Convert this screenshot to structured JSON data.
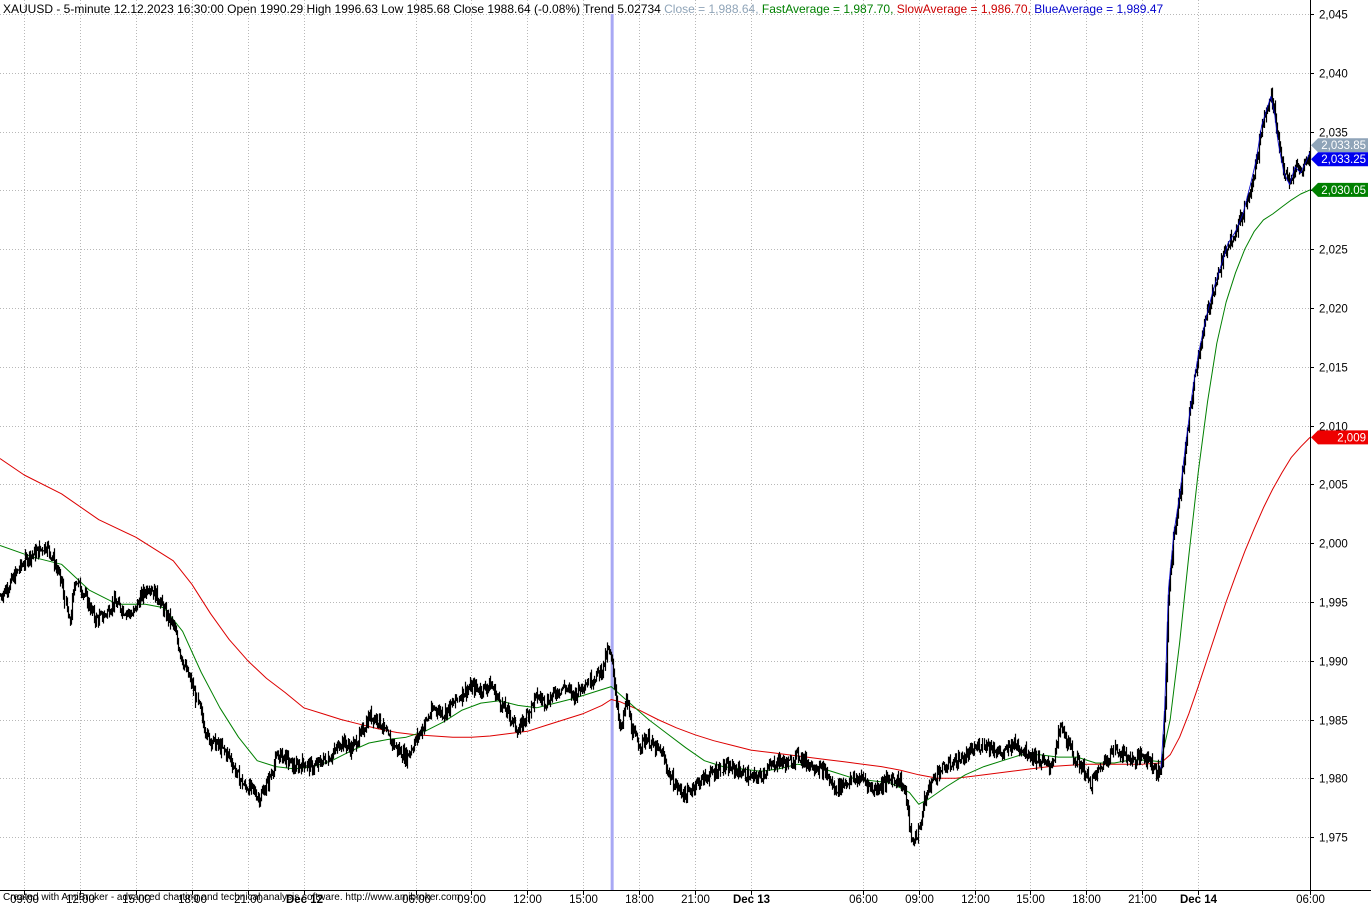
{
  "header": {
    "symbol_info": "XAUUSD - 5-minute 12.12.2023 16:30:00 Open 1990.29 High 1996.63 Low 1985.68 Close 1988.64 (-0.08%) Trend 5.02734 ",
    "close_label": "Close = 1,988.64, ",
    "fast_label": "FastAverage = 1,987.70, ",
    "slow_label": "SlowAverage = 1,986.70, ",
    "blue_label": "BlueAverage = 1,989.47",
    "colors": {
      "main": "#000000",
      "close": "#8fa4b8",
      "fast": "#008000",
      "slow": "#cc0000",
      "blue": "#0000cc"
    }
  },
  "footer_text": "Created with AmiBroker - advanced charting and technical analysis software. http://www.amibroker.com",
  "price_tags": [
    {
      "label": "2,033.85",
      "value": 2033.85,
      "color": "#8fa4b8"
    },
    {
      "label": "2,033.25",
      "value": 2033.25,
      "color": "#0000ee"
    },
    {
      "label": "2,030.05",
      "value": 2030.05,
      "color": "#008000"
    },
    {
      "label": "2,009",
      "value": 2009.0,
      "color": "#ee0000"
    }
  ],
  "chart_data": {
    "type": "candlestick",
    "ylim": [
      1970.5,
      2046.2
    ],
    "y_ticks": [
      1975,
      1980,
      1985,
      1990,
      1995,
      2000,
      2005,
      2010,
      2015,
      2020,
      2025,
      2030,
      2035,
      2040,
      2045
    ],
    "y_tick_labels": [
      "1,975",
      "1,980",
      "1,985",
      "1,990",
      "1,995",
      "2,000",
      "2,005",
      "2,010",
      "2,015",
      "2,020",
      "2,025",
      "2,030",
      "2,035",
      "2,040",
      "2,045"
    ],
    "x_ticks": [
      {
        "x": 1.0,
        "label": "09:00",
        "bold": false
      },
      {
        "x": 4.0,
        "label": "12:00",
        "bold": false
      },
      {
        "x": 7.0,
        "label": "15:00",
        "bold": false
      },
      {
        "x": 10.0,
        "label": "18:00",
        "bold": false
      },
      {
        "x": 13.0,
        "label": "21:00",
        "bold": false
      },
      {
        "x": 16.0,
        "label": "Dec 12",
        "bold": true
      },
      {
        "x": 22.0,
        "label": "06:00",
        "bold": false
      },
      {
        "x": 25.0,
        "label": "09:00",
        "bold": false
      },
      {
        "x": 28.0,
        "label": "12:00",
        "bold": false
      },
      {
        "x": 31.0,
        "label": "15:00",
        "bold": false
      },
      {
        "x": 34.0,
        "label": "18:00",
        "bold": false
      },
      {
        "x": 37.0,
        "label": "21:00",
        "bold": false
      },
      {
        "x": 40.0,
        "label": "Dec 13",
        "bold": true
      },
      {
        "x": 46.0,
        "label": "06:00",
        "bold": false
      },
      {
        "x": 49.0,
        "label": "09:00",
        "bold": false
      },
      {
        "x": 52.0,
        "label": "12:00",
        "bold": false
      },
      {
        "x": 55.0,
        "label": "15:00",
        "bold": false
      },
      {
        "x": 58.0,
        "label": "18:00",
        "bold": false
      },
      {
        "x": 61.0,
        "label": "21:00",
        "bold": false
      },
      {
        "x": 64.0,
        "label": "Dec 14",
        "bold": true
      },
      {
        "x": 70.0,
        "label": "06:00",
        "bold": false
      }
    ],
    "x_domain": [
      -0.3,
      70.0
    ],
    "selected_x": 32.55,
    "price_path": [
      [
        -0.3,
        1995.5
      ],
      [
        0.2,
        1996.5
      ],
      [
        0.7,
        1997.8
      ],
      [
        1.2,
        1998.8
      ],
      [
        1.7,
        1999.3
      ],
      [
        2.2,
        1999.8
      ],
      [
        2.6,
        1998.5
      ],
      [
        3.0,
        1996.7
      ],
      [
        3.4,
        1993.0
      ],
      [
        3.7,
        1997.0
      ],
      [
        4.2,
        1995.6
      ],
      [
        4.8,
        1993.5
      ],
      [
        5.3,
        1993.9
      ],
      [
        5.8,
        1995.0
      ],
      [
        6.3,
        1994.3
      ],
      [
        6.8,
        1993.9
      ],
      [
        7.2,
        1995.3
      ],
      [
        7.7,
        1996.4
      ],
      [
        8.2,
        1995.3
      ],
      [
        8.6,
        1994.0
      ],
      [
        9.0,
        1993.0
      ],
      [
        9.5,
        1990.0
      ],
      [
        10.0,
        1988.0
      ],
      [
        10.4,
        1985.8
      ],
      [
        10.8,
        1983.5
      ],
      [
        11.2,
        1983.0
      ],
      [
        11.6,
        1982.5
      ],
      [
        12.0,
        1981.8
      ],
      [
        12.4,
        1980.3
      ],
      [
        12.8,
        1979.3
      ],
      [
        13.2,
        1979.1
      ],
      [
        13.6,
        1978.3
      ],
      [
        14.1,
        1979.8
      ],
      [
        14.6,
        1982.0
      ],
      [
        15.0,
        1981.8
      ],
      [
        15.5,
        1980.9
      ],
      [
        16.0,
        1981.3
      ],
      [
        16.5,
        1980.9
      ],
      [
        17.0,
        1981.5
      ],
      [
        17.5,
        1982.0
      ],
      [
        18.0,
        1983.2
      ],
      [
        18.5,
        1982.5
      ],
      [
        19.0,
        1983.6
      ],
      [
        19.5,
        1985.3
      ],
      [
        20.0,
        1985.0
      ],
      [
        20.5,
        1983.5
      ],
      [
        21.0,
        1982.5
      ],
      [
        21.5,
        1981.8
      ],
      [
        22.0,
        1983.2
      ],
      [
        22.5,
        1984.7
      ],
      [
        23.0,
        1986.0
      ],
      [
        23.5,
        1985.5
      ],
      [
        24.0,
        1986.3
      ],
      [
        24.5,
        1987.3
      ],
      [
        25.0,
        1987.8
      ],
      [
        25.5,
        1987.5
      ],
      [
        26.0,
        1988.0
      ],
      [
        26.5,
        1986.5
      ],
      [
        27.0,
        1985.4
      ],
      [
        27.5,
        1984.0
      ],
      [
        28.0,
        1985.5
      ],
      [
        28.5,
        1987.0
      ],
      [
        29.0,
        1986.5
      ],
      [
        29.5,
        1987.3
      ],
      [
        30.0,
        1987.8
      ],
      [
        30.5,
        1987.0
      ],
      [
        31.0,
        1988.0
      ],
      [
        31.5,
        1988.5
      ],
      [
        32.0,
        1989.3
      ],
      [
        32.3,
        1991.0
      ],
      [
        32.55,
        1989.5
      ],
      [
        32.8,
        1986.0
      ],
      [
        33.0,
        1984.0
      ],
      [
        33.3,
        1986.8
      ],
      [
        33.6,
        1984.0
      ],
      [
        34.0,
        1982.8
      ],
      [
        34.4,
        1983.5
      ],
      [
        34.8,
        1982.6
      ],
      [
        35.2,
        1982.2
      ],
      [
        35.6,
        1980.3
      ],
      [
        36.0,
        1979.3
      ],
      [
        36.5,
        1978.5
      ],
      [
        37.0,
        1979.5
      ],
      [
        37.5,
        1980.0
      ],
      [
        38.0,
        1980.5
      ],
      [
        38.5,
        1981.0
      ],
      [
        39.0,
        1980.8
      ],
      [
        39.5,
        1980.5
      ],
      [
        40.0,
        1980.0
      ],
      [
        40.5,
        1980.2
      ],
      [
        41.0,
        1981.0
      ],
      [
        41.5,
        1981.5
      ],
      [
        42.0,
        1981.2
      ],
      [
        42.5,
        1982.0
      ],
      [
        43.0,
        1981.3
      ],
      [
        43.5,
        1981.0
      ],
      [
        44.0,
        1980.5
      ],
      [
        44.5,
        1979.0
      ],
      [
        45.0,
        1979.6
      ],
      [
        45.5,
        1979.9
      ],
      [
        46.0,
        1980.0
      ],
      [
        46.5,
        1979.0
      ],
      [
        47.0,
        1979.5
      ],
      [
        47.5,
        1980.0
      ],
      [
        48.0,
        1979.8
      ],
      [
        48.3,
        1978.5
      ],
      [
        48.6,
        1974.5
      ],
      [
        49.0,
        1975.5
      ],
      [
        49.3,
        1978.0
      ],
      [
        49.6,
        1979.5
      ],
      [
        50.0,
        1980.5
      ],
      [
        50.5,
        1981.0
      ],
      [
        51.0,
        1981.5
      ],
      [
        51.5,
        1981.8
      ],
      [
        52.0,
        1982.5
      ],
      [
        52.5,
        1983.0
      ],
      [
        53.0,
        1982.5
      ],
      [
        53.5,
        1982.0
      ],
      [
        54.0,
        1983.0
      ],
      [
        54.5,
        1982.5
      ],
      [
        55.0,
        1982.0
      ],
      [
        55.5,
        1981.5
      ],
      [
        56.0,
        1981.0
      ],
      [
        56.3,
        1982.0
      ],
      [
        56.6,
        1984.5
      ],
      [
        57.0,
        1983.0
      ],
      [
        57.4,
        1981.5
      ],
      [
        57.8,
        1981.0
      ],
      [
        58.2,
        1979.5
      ],
      [
        58.6,
        1980.5
      ],
      [
        59.0,
        1981.5
      ],
      [
        59.5,
        1982.5
      ],
      [
        60.0,
        1982.0
      ],
      [
        60.5,
        1981.5
      ],
      [
        61.0,
        1982.0
      ],
      [
        61.4,
        1981.5
      ],
      [
        61.8,
        1980.5
      ],
      [
        62.0,
        1980.8
      ],
      [
        62.2,
        1986.0
      ],
      [
        62.4,
        1996.0
      ],
      [
        62.7,
        2001.0
      ],
      [
        63.0,
        2004.0
      ],
      [
        63.3,
        2008.0
      ],
      [
        63.7,
        2013.0
      ],
      [
        64.0,
        2016.0
      ],
      [
        64.4,
        2019.0
      ],
      [
        64.8,
        2021.5
      ],
      [
        65.2,
        2023.5
      ],
      [
        65.6,
        2025.5
      ],
      [
        66.0,
        2026.5
      ],
      [
        66.4,
        2028.0
      ],
      [
        66.8,
        2030.5
      ],
      [
        67.1,
        2032.5
      ],
      [
        67.4,
        2035.5
      ],
      [
        67.7,
        2037.0
      ],
      [
        67.9,
        2038.0
      ],
      [
        68.1,
        2036.5
      ],
      [
        68.3,
        2034.0
      ],
      [
        68.6,
        2031.5
      ],
      [
        68.9,
        2030.5
      ],
      [
        69.2,
        2032.0
      ],
      [
        69.5,
        2031.5
      ],
      [
        69.8,
        2032.5
      ],
      [
        70.0,
        2033.25
      ]
    ],
    "fast_average": [
      [
        -0.3,
        1999.8
      ],
      [
        1.5,
        1998.8
      ],
      [
        3.0,
        1998.2
      ],
      [
        4.5,
        1996.0
      ],
      [
        6.0,
        1994.8
      ],
      [
        7.5,
        1994.8
      ],
      [
        8.5,
        1994.5
      ],
      [
        9.5,
        1992.5
      ],
      [
        10.5,
        1989.0
      ],
      [
        11.5,
        1986.0
      ],
      [
        12.5,
        1983.5
      ],
      [
        13.5,
        1981.5
      ],
      [
        14.5,
        1981.0
      ],
      [
        15.5,
        1980.8
      ],
      [
        16.5,
        1981.0
      ],
      [
        17.5,
        1981.5
      ],
      [
        18.5,
        1982.3
      ],
      [
        19.5,
        1983.0
      ],
      [
        20.5,
        1983.3
      ],
      [
        21.5,
        1983.5
      ],
      [
        22.5,
        1984.0
      ],
      [
        23.5,
        1984.8
      ],
      [
        24.5,
        1985.8
      ],
      [
        25.5,
        1986.4
      ],
      [
        26.5,
        1986.6
      ],
      [
        27.5,
        1986.2
      ],
      [
        28.5,
        1986.0
      ],
      [
        29.5,
        1986.4
      ],
      [
        30.5,
        1986.8
      ],
      [
        31.5,
        1987.3
      ],
      [
        32.5,
        1987.8
      ],
      [
        33.5,
        1986.4
      ],
      [
        34.5,
        1985.0
      ],
      [
        35.5,
        1983.8
      ],
      [
        36.5,
        1982.6
      ],
      [
        37.5,
        1981.5
      ],
      [
        38.5,
        1981.0
      ],
      [
        39.5,
        1980.8
      ],
      [
        40.5,
        1980.6
      ],
      [
        41.5,
        1980.8
      ],
      [
        42.5,
        1981.2
      ],
      [
        43.5,
        1981.0
      ],
      [
        44.5,
        1980.5
      ],
      [
        45.5,
        1980.0
      ],
      [
        46.5,
        1979.8
      ],
      [
        47.5,
        1979.6
      ],
      [
        48.5,
        1978.8
      ],
      [
        49.0,
        1977.8
      ],
      [
        49.5,
        1978.2
      ],
      [
        50.5,
        1979.3
      ],
      [
        51.5,
        1980.3
      ],
      [
        52.5,
        1981.0
      ],
      [
        53.5,
        1981.5
      ],
      [
        54.5,
        1982.0
      ],
      [
        55.5,
        1982.0
      ],
      [
        56.5,
        1981.8
      ],
      [
        57.5,
        1981.8
      ],
      [
        58.5,
        1981.3
      ],
      [
        59.5,
        1981.3
      ],
      [
        60.5,
        1981.6
      ],
      [
        61.5,
        1981.5
      ],
      [
        62.0,
        1981.4
      ],
      [
        62.5,
        1985.0
      ],
      [
        63.0,
        1991.5
      ],
      [
        63.5,
        1999.0
      ],
      [
        64.0,
        2006.0
      ],
      [
        64.5,
        2012.0
      ],
      [
        65.0,
        2017.0
      ],
      [
        65.5,
        2020.5
      ],
      [
        66.0,
        2023.0
      ],
      [
        66.5,
        2025.0
      ],
      [
        67.0,
        2026.5
      ],
      [
        67.5,
        2027.5
      ],
      [
        68.0,
        2028.0
      ],
      [
        68.5,
        2028.6
      ],
      [
        69.0,
        2029.2
      ],
      [
        69.5,
        2029.7
      ],
      [
        70.0,
        2030.05
      ]
    ],
    "slow_average": [
      [
        -0.3,
        2007.2
      ],
      [
        1.0,
        2005.8
      ],
      [
        3.0,
        2004.2
      ],
      [
        5.0,
        2002.0
      ],
      [
        7.0,
        2000.5
      ],
      [
        9.0,
        1998.5
      ],
      [
        10.0,
        1996.5
      ],
      [
        11.0,
        1994.0
      ],
      [
        12.0,
        1991.8
      ],
      [
        13.0,
        1990.0
      ],
      [
        14.0,
        1988.5
      ],
      [
        15.0,
        1987.3
      ],
      [
        16.0,
        1986.0
      ],
      [
        17.0,
        1985.5
      ],
      [
        18.0,
        1985.0
      ],
      [
        19.0,
        1984.6
      ],
      [
        20.0,
        1984.2
      ],
      [
        21.0,
        1983.9
      ],
      [
        22.0,
        1983.7
      ],
      [
        23.0,
        1983.6
      ],
      [
        24.0,
        1983.5
      ],
      [
        25.0,
        1983.5
      ],
      [
        26.0,
        1983.6
      ],
      [
        27.0,
        1983.8
      ],
      [
        28.0,
        1984.0
      ],
      [
        29.0,
        1984.5
      ],
      [
        30.0,
        1985.0
      ],
      [
        31.0,
        1985.5
      ],
      [
        32.0,
        1986.2
      ],
      [
        32.5,
        1986.7
      ],
      [
        33.0,
        1986.5
      ],
      [
        34.0,
        1985.8
      ],
      [
        35.0,
        1985.0
      ],
      [
        36.0,
        1984.3
      ],
      [
        37.0,
        1983.7
      ],
      [
        38.0,
        1983.2
      ],
      [
        39.0,
        1982.8
      ],
      [
        40.0,
        1982.4
      ],
      [
        41.0,
        1982.2
      ],
      [
        42.0,
        1982.0
      ],
      [
        43.0,
        1981.8
      ],
      [
        44.0,
        1981.6
      ],
      [
        45.0,
        1981.4
      ],
      [
        46.0,
        1981.2
      ],
      [
        47.0,
        1981.0
      ],
      [
        48.0,
        1980.7
      ],
      [
        49.0,
        1980.3
      ],
      [
        50.0,
        1980.0
      ],
      [
        51.0,
        1980.0
      ],
      [
        52.0,
        1980.2
      ],
      [
        53.0,
        1980.4
      ],
      [
        54.0,
        1980.6
      ],
      [
        55.0,
        1980.8
      ],
      [
        56.0,
        1981.0
      ],
      [
        57.0,
        1981.1
      ],
      [
        58.0,
        1981.2
      ],
      [
        59.0,
        1981.2
      ],
      [
        60.0,
        1981.2
      ],
      [
        61.0,
        1981.2
      ],
      [
        62.0,
        1981.3
      ],
      [
        62.5,
        1982.0
      ],
      [
        63.0,
        1983.5
      ],
      [
        63.5,
        1985.5
      ],
      [
        64.0,
        1987.8
      ],
      [
        64.5,
        1990.2
      ],
      [
        65.0,
        1992.6
      ],
      [
        65.5,
        1995.0
      ],
      [
        66.0,
        1997.2
      ],
      [
        66.5,
        1999.3
      ],
      [
        67.0,
        2001.2
      ],
      [
        67.5,
        2003.0
      ],
      [
        68.0,
        2004.6
      ],
      [
        68.5,
        2006.0
      ],
      [
        69.0,
        2007.3
      ],
      [
        69.5,
        2008.2
      ],
      [
        70.0,
        2009.0
      ]
    ]
  }
}
